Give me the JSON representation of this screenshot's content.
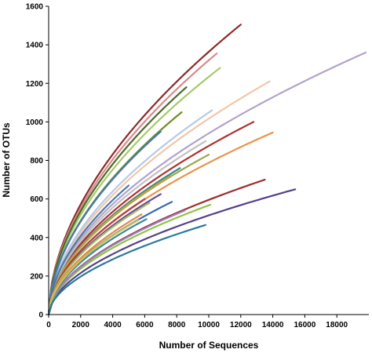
{
  "chart_data": {
    "type": "line",
    "title": "",
    "xlabel": "Number of Sequences",
    "ylabel": "Number of OTUs",
    "xlim": [
      0,
      20000
    ],
    "ylim": [
      0,
      1600
    ],
    "xticks": [
      0,
      2000,
      4000,
      6000,
      8000,
      10000,
      12000,
      14000,
      16000,
      18000
    ],
    "yticks": [
      0,
      200,
      400,
      600,
      800,
      1000,
      1200,
      1400,
      1600
    ],
    "grid": false,
    "legend": "none",
    "series_note": "rarefaction curves, power-law shaped; each entry gives sequencing depth and final OTU count",
    "series": [
      {
        "color": "#8b2a2a",
        "x_end": 12000,
        "y_end": 1505
      },
      {
        "color": "#d98a8a",
        "x_end": 10500,
        "y_end": 1355
      },
      {
        "color": "#b3a2cc",
        "x_end": 19800,
        "y_end": 1360
      },
      {
        "color": "#a6c96a",
        "x_end": 10700,
        "y_end": 1280
      },
      {
        "color": "#f2c6a8",
        "x_end": 13800,
        "y_end": 1210
      },
      {
        "color": "#4a6a2a",
        "x_end": 8600,
        "y_end": 1180
      },
      {
        "color": "#b7c9e6",
        "x_end": 10200,
        "y_end": 1060
      },
      {
        "color": "#6b8e23",
        "x_end": 8300,
        "y_end": 1050
      },
      {
        "color": "#b03030",
        "x_end": 12800,
        "y_end": 1000
      },
      {
        "color": "#4a77b4",
        "x_end": 7000,
        "y_end": 950
      },
      {
        "color": "#e8944a",
        "x_end": 14000,
        "y_end": 945
      },
      {
        "color": "#c0c0c0",
        "x_end": 9800,
        "y_end": 900
      },
      {
        "color": "#9aa84a",
        "x_end": 10000,
        "y_end": 830
      },
      {
        "color": "#2e8b8b",
        "x_end": 8200,
        "y_end": 760
      },
      {
        "color": "#c8a040",
        "x_end": 7600,
        "y_end": 720
      },
      {
        "color": "#9b2d2d",
        "x_end": 13500,
        "y_end": 700
      },
      {
        "color": "#4a7aa8",
        "x_end": 5000,
        "y_end": 670
      },
      {
        "color": "#54408a",
        "x_end": 15400,
        "y_end": 650
      },
      {
        "color": "#6a4a9a",
        "x_end": 7000,
        "y_end": 625
      },
      {
        "color": "#b04040",
        "x_end": 6000,
        "y_end": 600
      },
      {
        "color": "#3a6ab0",
        "x_end": 7700,
        "y_end": 585
      },
      {
        "color": "#a6c060",
        "x_end": 6300,
        "y_end": 580
      },
      {
        "color": "#8cc63f",
        "x_end": 10100,
        "y_end": 570
      },
      {
        "color": "#9a80c0",
        "x_end": 8500,
        "y_end": 540
      },
      {
        "color": "#e08a4a",
        "x_end": 5800,
        "y_end": 520
      },
      {
        "color": "#3a8aa0",
        "x_end": 6100,
        "y_end": 495
      },
      {
        "color": "#d0c050",
        "x_end": 5600,
        "y_end": 490
      },
      {
        "color": "#2a7a9a",
        "x_end": 9800,
        "y_end": 465
      }
    ]
  }
}
